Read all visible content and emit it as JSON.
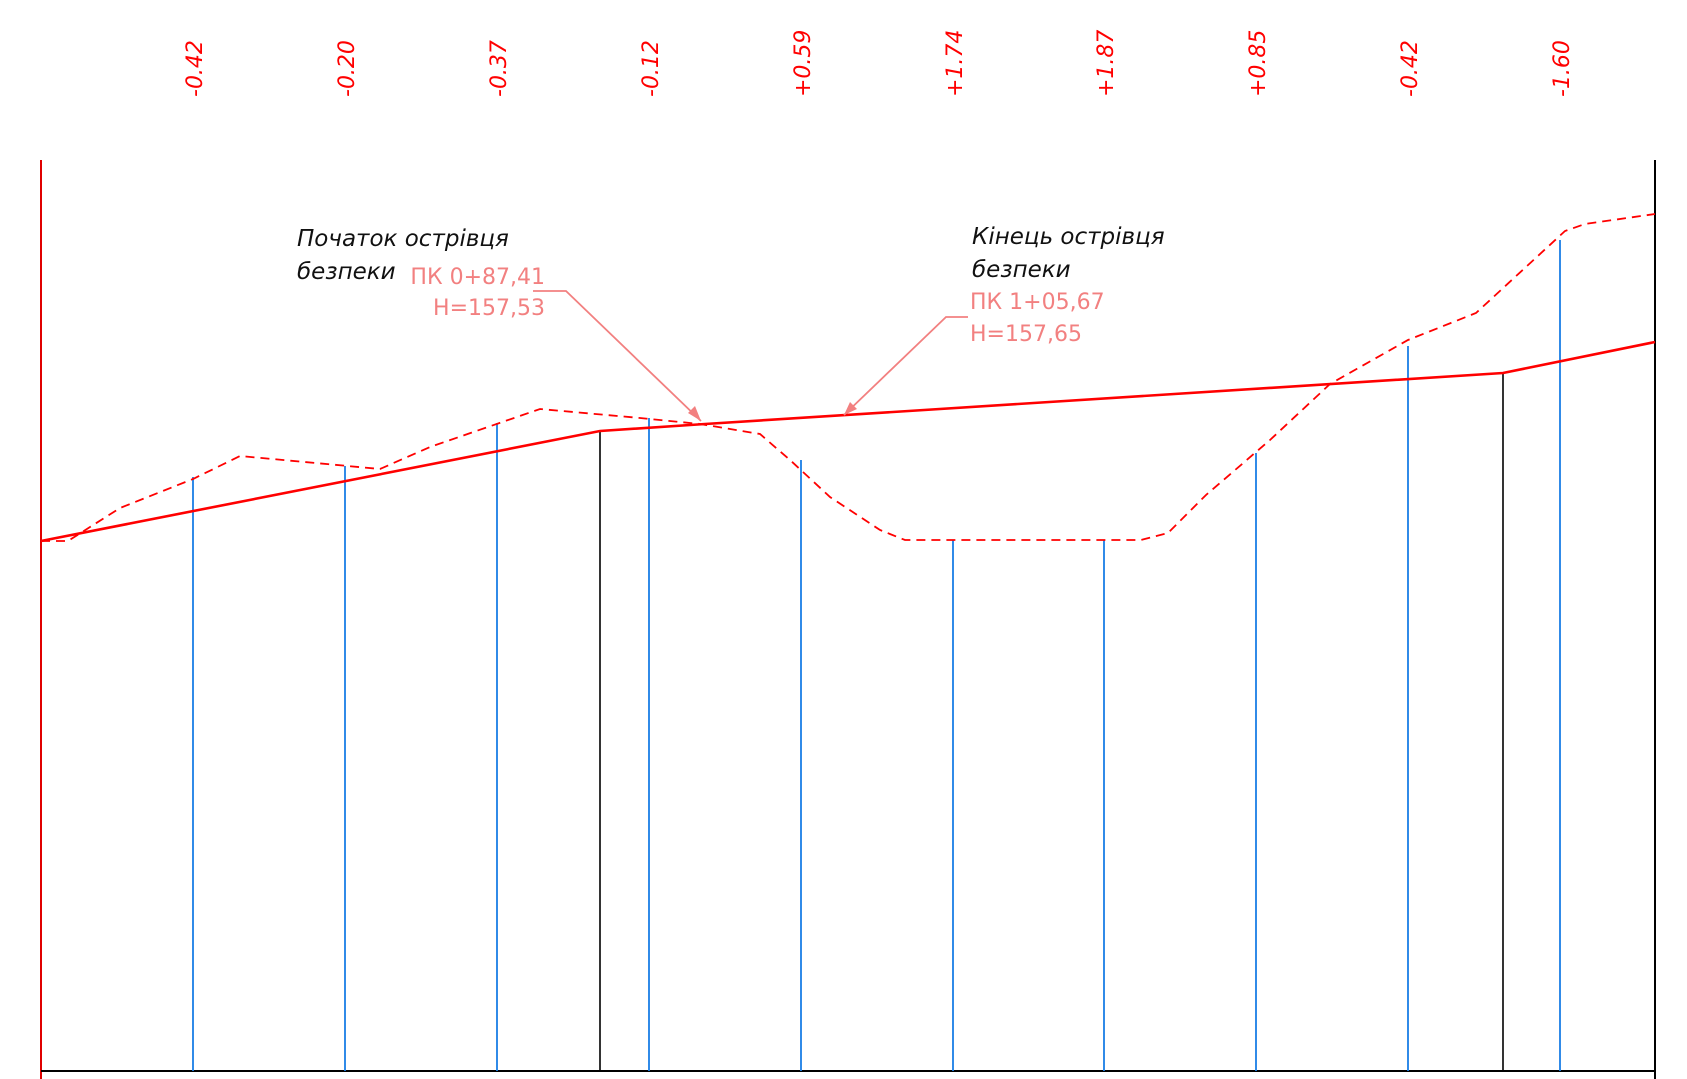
{
  "elevation_differences": [
    "-0.42",
    "-0.20",
    "-0.37",
    "-0.12",
    "+0.59",
    "+1.74",
    "+1.87",
    "+0.85",
    "-0.42",
    "-1.60"
  ],
  "annotations": {
    "start": {
      "title_line1": "Початок острівця",
      "title_line2": "безпеки",
      "picket": "ПК 0+87,41",
      "elevation": "H=157,53"
    },
    "end": {
      "title_line1": "Кінець острівця",
      "title_line2": "безпеки",
      "picket": "ПК 1+05,67",
      "elevation": "H=157,65"
    }
  },
  "colors": {
    "design_line": "#ff0000",
    "ground_line": "#ff0000",
    "elevation_labels": "#ff0000",
    "callout": "#f28080",
    "station_lines": "#1a7ee6",
    "break_lines": "#000000",
    "frame": "#000000"
  }
}
